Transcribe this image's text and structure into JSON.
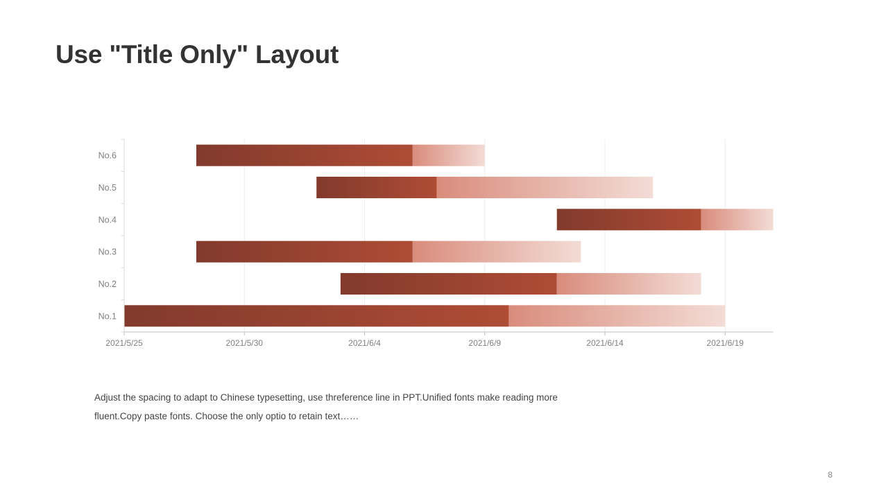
{
  "slide": {
    "title": "Use \"Title Only\" Layout",
    "caption_line1": "Adjust the spacing to adapt to Chinese typesetting, use threference line in PPT.Unified fonts make reading more",
    "caption_line2": "fluent.Copy paste fonts. Choose the only optio to retain text……",
    "page_number": "8"
  },
  "chart_data": {
    "type": "bar",
    "orientation": "horizontal-stacked (gantt)",
    "categories": [
      "No.1",
      "No.2",
      "No.3",
      "No.4",
      "No.5",
      "No.6"
    ],
    "x_ticks": [
      "2021/5/25",
      "2021/5/30",
      "2021/6/4",
      "2021/6/9",
      "2021/6/14",
      "2021/6/19"
    ],
    "xlim": [
      "2021/5/25",
      "2021/6/21"
    ],
    "series": [
      {
        "role": "start",
        "invisible": true,
        "values": [
          "2021/5/25",
          "2021/6/3",
          "2021/5/28",
          "2021/6/12",
          "2021/6/2",
          "2021/5/28"
        ]
      },
      {
        "role": "completed",
        "color_from": "#823a2c",
        "color_to": "#ae4c36",
        "end_values": [
          "2021/6/10",
          "2021/6/12",
          "2021/6/6",
          "2021/6/18",
          "2021/6/7",
          "2021/6/6"
        ]
      },
      {
        "role": "remaining",
        "color_from": "#d98c7c",
        "color_to": "#f3dcd6",
        "end_values": [
          "2021/6/19",
          "2021/6/18",
          "2021/6/13",
          "2021/6/21",
          "2021/6/16",
          "2021/6/9"
        ]
      }
    ],
    "grid": "vertical",
    "legend": "none"
  }
}
